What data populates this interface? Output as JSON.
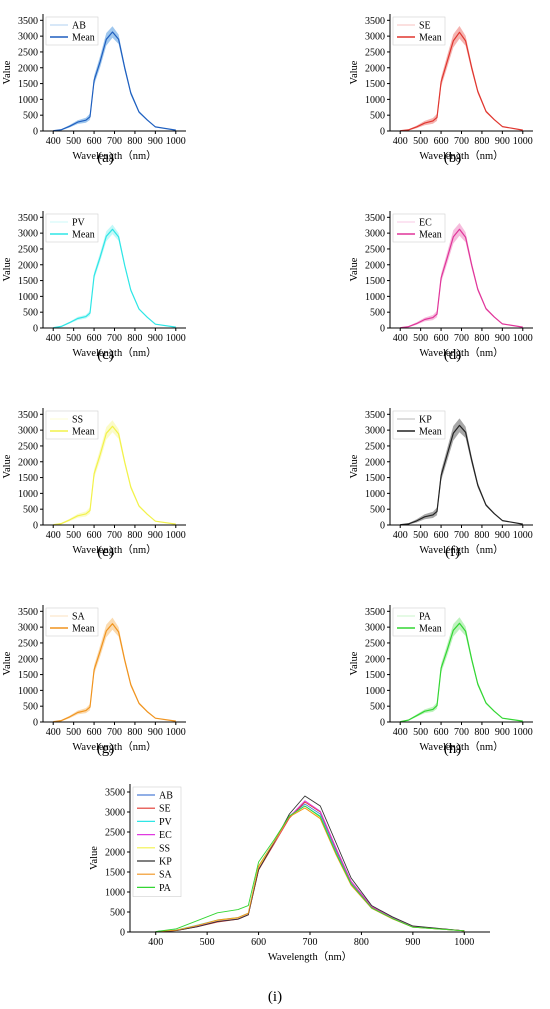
{
  "figure": {
    "background": "#ffffff",
    "axis_color": "#000000"
  },
  "chart_data": [
    {
      "type": "line",
      "panel_label": "(a)",
      "xlabel": "Wavelength（nm）",
      "ylabel": "Value",
      "xlim": [
        350,
        1050
      ],
      "ylim": [
        0,
        3700
      ],
      "xticks": [
        400,
        500,
        600,
        700,
        800,
        900,
        1000
      ],
      "yticks": [
        0,
        500,
        1000,
        1500,
        2000,
        2500,
        3000,
        3500
      ],
      "grid": false,
      "legend_position": "top-left",
      "legend": [
        "AB",
        "Mean"
      ],
      "color": "#1f5fbf",
      "band_color": "#7fb4e8",
      "band_halfwidth": [
        0,
        20,
        40,
        60,
        80,
        100,
        140,
        180,
        200,
        180,
        150,
        100,
        70,
        40,
        20,
        10,
        5
      ],
      "x": [
        400,
        440,
        480,
        520,
        560,
        580,
        600,
        630,
        660,
        690,
        720,
        750,
        780,
        820,
        860,
        900,
        1000
      ],
      "series": [
        {
          "name": "Mean",
          "values": [
            10,
            40,
            150,
            280,
            340,
            450,
            1600,
            2200,
            2900,
            3130,
            2900,
            2000,
            1200,
            600,
            350,
            130,
            30
          ]
        }
      ]
    },
    {
      "type": "line",
      "panel_label": "(b)",
      "xlabel": "Wavelength（nm）",
      "ylabel": "Value",
      "xlim": [
        350,
        1050
      ],
      "ylim": [
        0,
        3700
      ],
      "xticks": [
        400,
        500,
        600,
        700,
        800,
        900,
        1000
      ],
      "yticks": [
        0,
        500,
        1000,
        1500,
        2000,
        2500,
        3000,
        3500
      ],
      "grid": false,
      "legend_position": "top-left",
      "legend": [
        "SE",
        "Mean"
      ],
      "color": "#e0362f",
      "band_color": "#f29a95",
      "band_halfwidth": [
        0,
        20,
        40,
        70,
        90,
        110,
        150,
        190,
        210,
        200,
        160,
        110,
        70,
        40,
        20,
        10,
        5
      ],
      "x": [
        400,
        440,
        480,
        520,
        560,
        580,
        600,
        630,
        660,
        690,
        720,
        750,
        780,
        820,
        860,
        900,
        1000
      ],
      "series": [
        {
          "name": "Mean",
          "values": [
            10,
            35,
            130,
            250,
            320,
            430,
            1550,
            2200,
            2850,
            3120,
            2850,
            2000,
            1250,
            620,
            360,
            140,
            30
          ]
        }
      ]
    },
    {
      "type": "line",
      "panel_label": "(c)",
      "xlabel": "Wavelength（nm）",
      "ylabel": "Value",
      "xlim": [
        350,
        1050
      ],
      "ylim": [
        0,
        3700
      ],
      "xticks": [
        400,
        500,
        600,
        700,
        800,
        900,
        1000
      ],
      "yticks": [
        0,
        500,
        1000,
        1500,
        2000,
        2500,
        3000,
        3500
      ],
      "grid": false,
      "legend_position": "top-left",
      "legend": [
        "PV",
        "Mean"
      ],
      "color": "#2ee6e6",
      "band_color": "#aef5f5",
      "band_halfwidth": [
        0,
        15,
        30,
        50,
        60,
        80,
        110,
        140,
        160,
        150,
        120,
        80,
        50,
        30,
        15,
        8,
        4
      ],
      "x": [
        400,
        440,
        480,
        520,
        560,
        580,
        600,
        630,
        660,
        690,
        720,
        750,
        780,
        820,
        860,
        900,
        1000
      ],
      "series": [
        {
          "name": "Mean",
          "values": [
            10,
            50,
            170,
            300,
            360,
            470,
            1650,
            2250,
            2900,
            3120,
            2880,
            1980,
            1200,
            600,
            340,
            120,
            30
          ]
        }
      ]
    },
    {
      "type": "line",
      "panel_label": "(d)",
      "xlabel": "Wavelength（nm）",
      "ylabel": "Value",
      "xlim": [
        350,
        1050
      ],
      "ylim": [
        0,
        3700
      ],
      "xticks": [
        400,
        500,
        600,
        700,
        800,
        900,
        1000
      ],
      "yticks": [
        0,
        500,
        1000,
        1500,
        2000,
        2500,
        3000,
        3500
      ],
      "grid": false,
      "legend_position": "top-left",
      "legend": [
        "EC",
        "Mean"
      ],
      "color": "#e0359a",
      "band_color": "#f3a6d2",
      "band_halfwidth": [
        0,
        20,
        40,
        60,
        80,
        100,
        140,
        180,
        210,
        200,
        160,
        110,
        70,
        40,
        20,
        10,
        5
      ],
      "x": [
        400,
        440,
        480,
        520,
        560,
        580,
        600,
        630,
        660,
        690,
        720,
        750,
        780,
        820,
        860,
        900,
        1000
      ],
      "series": [
        {
          "name": "Mean",
          "values": [
            10,
            40,
            140,
            270,
            330,
            440,
            1580,
            2220,
            2880,
            3120,
            2870,
            1990,
            1220,
            610,
            350,
            130,
            30
          ]
        }
      ]
    },
    {
      "type": "line",
      "panel_label": "(e)",
      "xlabel": "Wavelength（nm）",
      "ylabel": "Value",
      "xlim": [
        350,
        1050
      ],
      "ylim": [
        0,
        3700
      ],
      "xticks": [
        400,
        500,
        600,
        700,
        800,
        900,
        1000
      ],
      "yticks": [
        0,
        500,
        1000,
        1500,
        2000,
        2500,
        3000,
        3500
      ],
      "grid": false,
      "legend_position": "top-left",
      "legend": [
        "SS",
        "Mean"
      ],
      "color": "#f2f24a",
      "band_color": "#fafab5",
      "band_halfwidth": [
        0,
        20,
        40,
        60,
        80,
        100,
        140,
        180,
        200,
        190,
        150,
        100,
        70,
        40,
        20,
        10,
        5
      ],
      "x": [
        400,
        440,
        480,
        520,
        560,
        580,
        600,
        630,
        660,
        690,
        720,
        750,
        780,
        820,
        860,
        900,
        1000
      ],
      "series": [
        {
          "name": "Mean",
          "values": [
            10,
            45,
            160,
            290,
            350,
            460,
            1620,
            2230,
            2900,
            3120,
            2880,
            1990,
            1200,
            600,
            340,
            120,
            30
          ]
        }
      ]
    },
    {
      "type": "line",
      "panel_label": "(f)",
      "xlabel": "Wavelength（nm）",
      "ylabel": "Value",
      "xlim": [
        350,
        1050
      ],
      "ylim": [
        0,
        3700
      ],
      "xticks": [
        400,
        500,
        600,
        700,
        800,
        900,
        1000
      ],
      "yticks": [
        0,
        500,
        1000,
        1500,
        2000,
        2500,
        3000,
        3500
      ],
      "grid": false,
      "legend_position": "top-left",
      "legend": [
        "KP",
        "Mean"
      ],
      "color": "#222222",
      "band_color": "#8a8a8a",
      "band_halfwidth": [
        0,
        20,
        50,
        80,
        100,
        120,
        160,
        200,
        230,
        220,
        180,
        120,
        80,
        40,
        20,
        10,
        5
      ],
      "x": [
        400,
        440,
        480,
        520,
        560,
        580,
        600,
        630,
        660,
        690,
        720,
        750,
        780,
        820,
        860,
        900,
        1000
      ],
      "series": [
        {
          "name": "Mean",
          "values": [
            10,
            35,
            130,
            260,
            320,
            430,
            1560,
            2230,
            2900,
            3150,
            2930,
            2050,
            1260,
            630,
            360,
            140,
            30
          ]
        }
      ]
    },
    {
      "type": "line",
      "panel_label": "(g)",
      "xlabel": "Wavelength（nm）",
      "ylabel": "Value",
      "xlim": [
        350,
        1050
      ],
      "ylim": [
        0,
        3700
      ],
      "xticks": [
        400,
        500,
        600,
        700,
        800,
        900,
        1000
      ],
      "yticks": [
        0,
        500,
        1000,
        1500,
        2000,
        2500,
        3000,
        3500
      ],
      "grid": false,
      "legend_position": "top-left",
      "legend": [
        "SA",
        "Mean"
      ],
      "color": "#f0941f",
      "band_color": "#f9cf95",
      "band_halfwidth": [
        0,
        20,
        40,
        60,
        80,
        100,
        140,
        180,
        200,
        190,
        150,
        100,
        70,
        40,
        20,
        10,
        5
      ],
      "x": [
        400,
        440,
        480,
        520,
        560,
        580,
        600,
        630,
        660,
        690,
        720,
        750,
        780,
        820,
        860,
        900,
        1000
      ],
      "series": [
        {
          "name": "Mean",
          "values": [
            10,
            45,
            160,
            300,
            360,
            470,
            1650,
            2250,
            2880,
            3110,
            2850,
            1960,
            1180,
            590,
            330,
            120,
            30
          ]
        }
      ]
    },
    {
      "type": "line",
      "panel_label": "(h)",
      "xlabel": "Wavelength（nm）",
      "ylabel": "Value",
      "xlim": [
        350,
        1050
      ],
      "ylim": [
        0,
        3700
      ],
      "xticks": [
        400,
        500,
        600,
        700,
        800,
        900,
        1000
      ],
      "yticks": [
        0,
        500,
        1000,
        1500,
        2000,
        2500,
        3000,
        3500
      ],
      "grid": false,
      "legend_position": "top-left",
      "legend": [
        "PA",
        "Mean"
      ],
      "color": "#33d633",
      "band_color": "#a8eea8",
      "band_halfwidth": [
        0,
        20,
        40,
        60,
        80,
        100,
        140,
        180,
        200,
        190,
        150,
        100,
        70,
        40,
        20,
        10,
        5
      ],
      "x": [
        400,
        440,
        480,
        520,
        560,
        580,
        600,
        630,
        660,
        690,
        720,
        750,
        780,
        820,
        860,
        900,
        1000
      ],
      "series": [
        {
          "name": "Mean",
          "values": [
            10,
            60,
            200,
            340,
            400,
            520,
            1700,
            2280,
            2900,
            3120,
            2870,
            1980,
            1200,
            600,
            340,
            120,
            30
          ]
        }
      ]
    },
    {
      "type": "line",
      "panel_label": "(i)",
      "xlabel": "Wavelength（nm）",
      "ylabel": "Value",
      "xlim": [
        350,
        1050
      ],
      "ylim": [
        0,
        3700
      ],
      "xticks": [
        400,
        500,
        600,
        700,
        800,
        900,
        1000
      ],
      "yticks": [
        0,
        500,
        1000,
        1500,
        2000,
        2500,
        3000,
        3500
      ],
      "grid": false,
      "legend_position": "top-left",
      "x": [
        400,
        440,
        480,
        520,
        560,
        580,
        600,
        630,
        660,
        690,
        720,
        750,
        780,
        820,
        860,
        900,
        1000
      ],
      "series": [
        {
          "name": "AB",
          "color": "#4f7fd6",
          "values": [
            10,
            40,
            150,
            280,
            340,
            450,
            1600,
            2200,
            2900,
            3200,
            2950,
            2050,
            1220,
            620,
            360,
            130,
            30
          ]
        },
        {
          "name": "SE",
          "color": "#e0362f",
          "values": [
            10,
            35,
            130,
            250,
            320,
            430,
            1550,
            2200,
            2850,
            3250,
            3000,
            2100,
            1260,
            630,
            370,
            140,
            30
          ]
        },
        {
          "name": "PV",
          "color": "#2ee6e6",
          "values": [
            10,
            50,
            170,
            300,
            360,
            470,
            1650,
            2250,
            2900,
            3150,
            2900,
            2000,
            1200,
            600,
            340,
            120,
            30
          ]
        },
        {
          "name": "EC",
          "color": "#e03ae0",
          "values": [
            10,
            40,
            140,
            270,
            330,
            440,
            1580,
            2220,
            2880,
            3280,
            3020,
            2120,
            1270,
            640,
            370,
            140,
            30
          ]
        },
        {
          "name": "SS",
          "color": "#f2f24a",
          "values": [
            10,
            45,
            160,
            290,
            350,
            460,
            1620,
            2230,
            2900,
            3100,
            2850,
            1980,
            1190,
            600,
            340,
            120,
            30
          ]
        },
        {
          "name": "KP",
          "color": "#333333",
          "values": [
            10,
            35,
            130,
            260,
            320,
            430,
            1560,
            2230,
            2950,
            3400,
            3150,
            2250,
            1350,
            660,
            380,
            150,
            30
          ]
        },
        {
          "name": "SA",
          "color": "#f0941f",
          "values": [
            10,
            45,
            160,
            300,
            360,
            470,
            1650,
            2250,
            2880,
            3100,
            2830,
            1950,
            1170,
            590,
            330,
            120,
            30
          ]
        },
        {
          "name": "PA",
          "color": "#33d633",
          "values": [
            10,
            80,
            280,
            480,
            560,
            660,
            1750,
            2300,
            2900,
            3150,
            2880,
            1990,
            1200,
            600,
            340,
            120,
            30
          ]
        }
      ]
    }
  ]
}
